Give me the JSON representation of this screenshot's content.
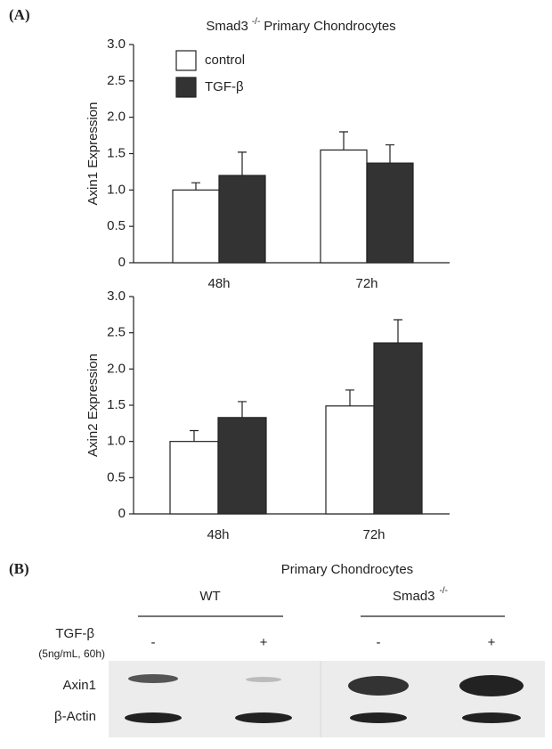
{
  "panel_labels": [
    "(A)",
    "(B)"
  ],
  "chart_data": [
    {
      "type": "bar",
      "title_prefix": "Smad3",
      "title_superscript": "-/-",
      "title_suffix": "Primary Chondrocytes",
      "ylabel": "Axin1 Expression",
      "categories": [
        "48h",
        "72h"
      ],
      "series": [
        {
          "name": "control",
          "color": "#ffffff",
          "values": [
            1.0,
            1.55
          ],
          "errors": [
            0.1,
            0.25
          ]
        },
        {
          "name": "TGF-β",
          "color": "#333333",
          "values": [
            1.2,
            1.37
          ],
          "errors": [
            0.32,
            0.25
          ]
        }
      ],
      "ylim": [
        0,
        3
      ],
      "yticks": [
        0,
        0.5,
        {
          "value": 1,
          "label": "1.0"
        },
        1.5,
        {
          "value": 2,
          "label": "2.0"
        },
        2.5,
        {
          "value": 3,
          "label": "3.0"
        }
      ],
      "legend": "upper left",
      "grid": false
    },
    {
      "type": "bar",
      "ylabel": "Axin2 Expression",
      "categories": [
        "48h",
        "72h"
      ],
      "series": [
        {
          "color": "#ffffff",
          "values": [
            1.0,
            1.49
          ],
          "errors": [
            0.15,
            0.22
          ]
        },
        {
          "color": "#333333",
          "values": [
            1.33,
            2.36
          ],
          "errors": [
            0.22,
            0.32
          ]
        }
      ],
      "ylim": [
        0,
        3
      ],
      "yticks": [
        0,
        0.5,
        {
          "value": 1,
          "label": "1.0"
        },
        1.5,
        {
          "value": 2,
          "label": "2.0"
        },
        2.5,
        {
          "value": 3,
          "label": "3.0"
        }
      ],
      "grid": false
    }
  ],
  "blot": {
    "title": "Primary Chondrocytes",
    "group_1": "WT",
    "group_2_prefix": "Smad3",
    "group_2_superscript": "-/-",
    "treatment": "TGF-β",
    "treatment_detail": "(5ng/mL, 60h)",
    "signs": [
      "-",
      "+",
      "-",
      "+"
    ],
    "rows": [
      "Axin1",
      "β-Actin"
    ]
  }
}
